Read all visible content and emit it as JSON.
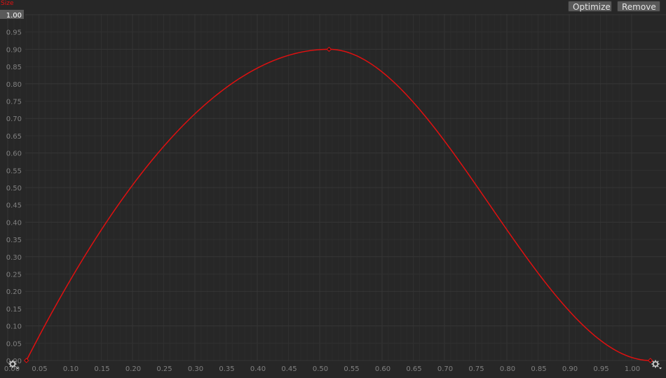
{
  "curve": {
    "title": "Size",
    "color": "#e01010",
    "keys": [
      {
        "time": 0.03,
        "value": 0.0
      },
      {
        "time": 0.515,
        "value": 0.9
      },
      {
        "time": 1.03,
        "value": 0.0
      }
    ]
  },
  "toolbar": {
    "optimize_label": "Optimize",
    "remove_label": "Remove"
  },
  "axes": {
    "x_ticks": [
      "0.00",
      "0.05",
      "0.10",
      "0.15",
      "0.20",
      "0.25",
      "0.30",
      "0.35",
      "0.40",
      "0.45",
      "0.50",
      "0.55",
      "0.60",
      "0.65",
      "0.70",
      "0.75",
      "0.80",
      "0.85",
      "0.90",
      "0.95",
      "1.00"
    ],
    "y_ticks": [
      "0.00",
      "0.05",
      "0.10",
      "0.15",
      "0.20",
      "0.25",
      "0.30",
      "0.35",
      "0.40",
      "0.45",
      "0.50",
      "0.55",
      "0.60",
      "0.65",
      "0.70",
      "0.75",
      "0.80",
      "0.85",
      "0.90",
      "0.95",
      "1.00"
    ],
    "y_max_highlight": "1.00"
  },
  "icons": {
    "left_key_menu": "gear-icon",
    "right_key_menu": "gear-icon"
  }
}
